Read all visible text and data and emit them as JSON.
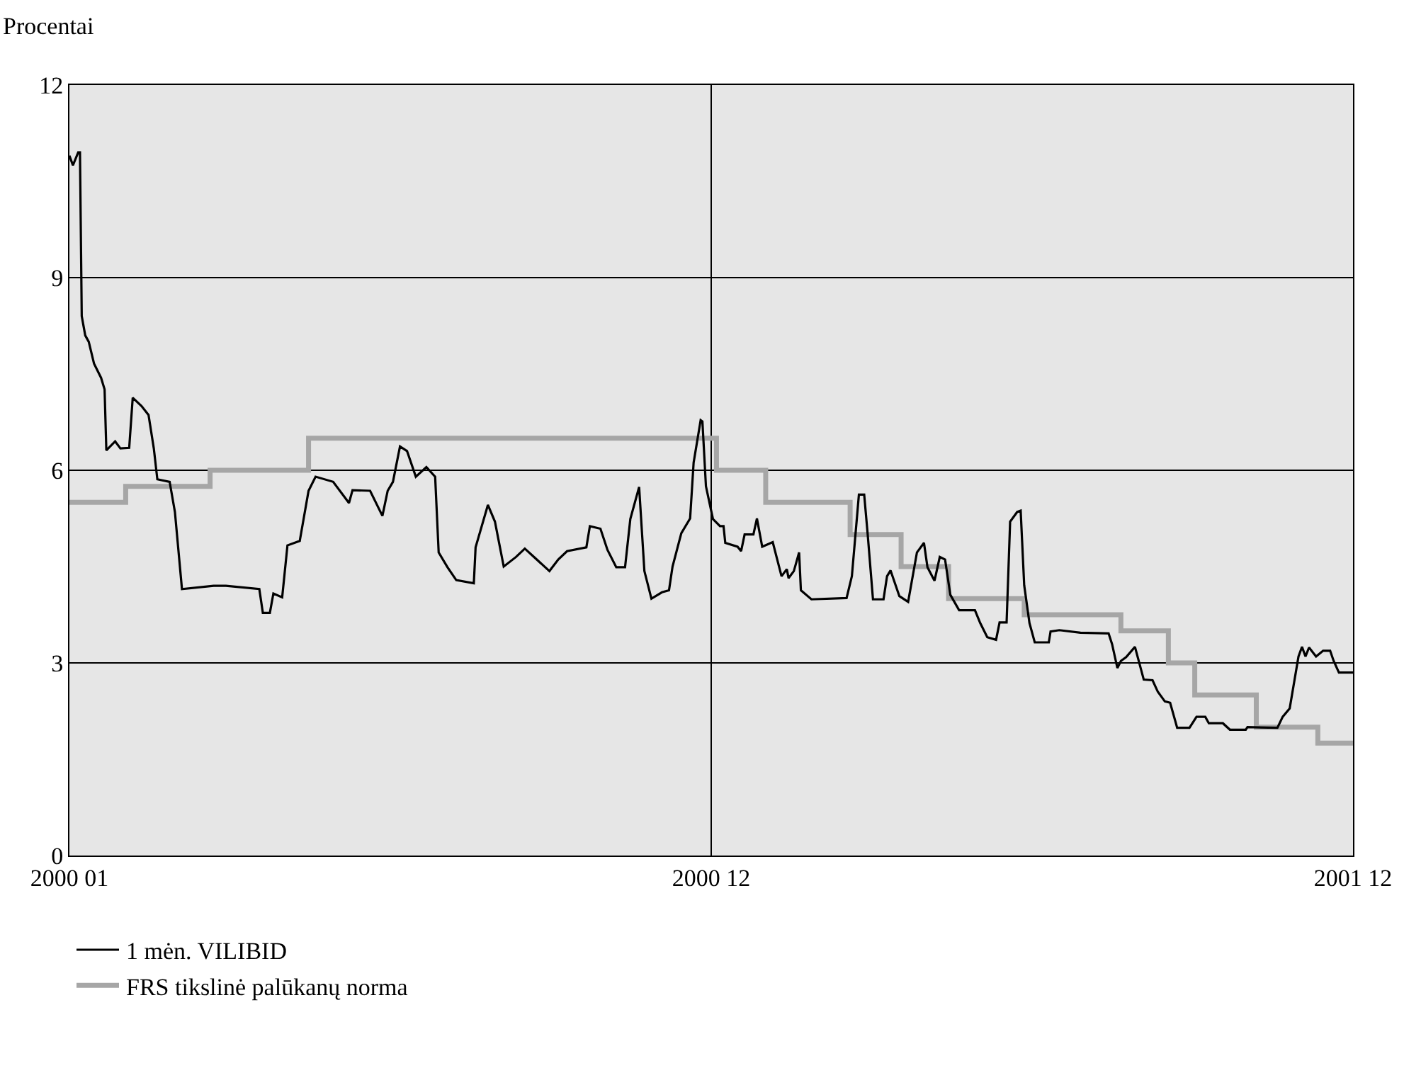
{
  "chart_data": {
    "type": "line",
    "ylabel": "Procentai",
    "xlim": [
      "2000-01-01",
      "2001-12-31"
    ],
    "xticks": [
      {
        "value": "2000-01-01",
        "label": "2000 01"
      },
      {
        "value": "2000-12-31",
        "label": "2000 12"
      },
      {
        "value": "2001-12-31",
        "label": "2001 12"
      }
    ],
    "ylim": [
      0,
      12
    ],
    "yticks": [
      0,
      3,
      6,
      9,
      12
    ],
    "grid": true,
    "legend": "bottom",
    "line_style": "solid",
    "marker": "none",
    "series": [
      {
        "name": "1 mėn. VILIBID",
        "color": "#000000",
        "x": [
          "2000-01-01",
          "2000-01-03",
          "2000-01-06",
          "2000-01-07",
          "2000-01-08",
          "2000-01-10",
          "2000-01-12",
          "2000-01-15",
          "2000-01-19",
          "2000-01-21",
          "2000-01-22",
          "2000-01-27",
          "2000-01-30",
          "2000-02-04",
          "2000-02-06",
          "2000-02-11",
          "2000-02-15",
          "2000-02-18",
          "2000-02-20",
          "2000-02-27",
          "2000-03-01",
          "2000-03-05",
          "2000-03-23",
          "2000-03-30",
          "2000-04-18",
          "2000-04-20",
          "2000-04-24",
          "2000-04-26",
          "2000-05-01",
          "2000-05-04",
          "2000-05-11",
          "2000-05-16",
          "2000-05-20",
          "2000-05-30",
          "2000-06-08",
          "2000-06-10",
          "2000-06-20",
          "2000-06-27",
          "2000-06-30",
          "2000-07-03",
          "2000-07-07",
          "2000-07-11",
          "2000-07-16",
          "2000-07-22",
          "2000-07-27",
          "2000-07-29",
          "2000-08-03",
          "2000-08-08",
          "2000-08-18",
          "2000-08-19",
          "2000-08-26",
          "2000-08-30",
          "2000-09-04",
          "2000-09-11",
          "2000-09-16",
          "2000-09-22",
          "2000-09-30",
          "2000-10-05",
          "2000-10-10",
          "2000-10-21",
          "2000-10-23",
          "2000-10-29",
          "2000-11-02",
          "2000-11-07",
          "2000-11-12",
          "2000-11-15",
          "2000-11-20",
          "2000-11-23",
          "2000-11-27",
          "2000-12-03",
          "2000-12-07",
          "2000-12-09",
          "2000-12-14",
          "2000-12-19",
          "2000-12-21",
          "2000-12-25",
          "2000-12-26",
          "2000-12-28",
          "2001-01-01",
          "2001-01-05",
          "2001-01-07",
          "2001-01-08",
          "2001-01-15",
          "2001-01-17",
          "2001-01-19",
          "2001-01-24",
          "2001-01-26",
          "2001-01-29",
          "2001-02-04",
          "2001-02-09",
          "2001-02-12",
          "2001-02-13",
          "2001-02-16",
          "2001-02-19",
          "2001-02-20",
          "2001-02-26",
          "2001-03-18",
          "2001-03-21",
          "2001-03-25",
          "2001-03-28",
          "2001-03-30",
          "2001-04-02",
          "2001-04-08",
          "2001-04-10",
          "2001-04-12",
          "2001-04-17",
          "2001-04-22",
          "2001-04-27",
          "2001-05-01",
          "2001-05-03",
          "2001-05-07",
          "2001-05-10",
          "2001-05-13",
          "2001-05-16",
          "2001-05-21",
          "2001-05-30",
          "2001-06-02",
          "2001-06-06",
          "2001-06-11",
          "2001-06-13",
          "2001-06-17",
          "2001-06-19",
          "2001-06-23",
          "2001-06-25",
          "2001-06-27",
          "2001-06-30",
          "2001-07-03",
          "2001-07-11",
          "2001-07-12",
          "2001-07-17",
          "2001-07-29",
          "2001-08-14",
          "2001-08-16",
          "2001-08-19",
          "2001-08-21",
          "2001-08-24",
          "2001-08-29",
          "2001-09-03",
          "2001-09-08",
          "2001-09-11",
          "2001-09-15",
          "2001-09-18",
          "2001-09-22",
          "2001-09-29",
          "2001-10-03",
          "2001-10-08",
          "2001-10-10",
          "2001-10-18",
          "2001-10-22",
          "2001-10-31",
          "2001-11-01",
          "2001-11-18",
          "2001-11-21",
          "2001-11-25",
          "2001-11-30",
          "2001-12-02",
          "2001-12-04",
          "2001-12-06",
          "2001-12-10",
          "2001-12-14",
          "2001-12-18",
          "2001-12-20",
          "2001-12-23",
          "2001-12-31"
        ],
        "values": [
          10.9,
          10.75,
          10.95,
          10.95,
          8.4,
          8.1,
          8.0,
          7.66,
          7.44,
          7.26,
          6.31,
          6.45,
          6.34,
          6.35,
          7.13,
          7.0,
          6.86,
          6.34,
          5.86,
          5.82,
          5.35,
          4.15,
          4.2,
          4.2,
          4.15,
          3.78,
          3.78,
          4.08,
          4.02,
          4.83,
          4.9,
          5.68,
          5.9,
          5.82,
          5.49,
          5.69,
          5.68,
          5.29,
          5.68,
          5.82,
          6.37,
          6.3,
          5.9,
          6.05,
          5.9,
          4.72,
          4.49,
          4.29,
          4.24,
          4.8,
          5.46,
          5.2,
          4.5,
          4.65,
          4.78,
          4.63,
          4.43,
          4.61,
          4.74,
          4.8,
          5.13,
          5.09,
          4.76,
          4.49,
          4.49,
          5.24,
          5.74,
          4.43,
          4.0,
          4.1,
          4.13,
          4.5,
          5.02,
          5.25,
          6.12,
          6.78,
          6.76,
          5.75,
          5.24,
          5.13,
          5.13,
          4.87,
          4.81,
          4.74,
          5.0,
          5.0,
          5.25,
          4.81,
          4.88,
          4.35,
          4.46,
          4.32,
          4.43,
          4.72,
          4.13,
          3.99,
          4.01,
          4.35,
          5.62,
          5.62,
          5.0,
          3.99,
          3.99,
          4.35,
          4.44,
          4.04,
          3.95,
          4.72,
          4.87,
          4.49,
          4.28,
          4.65,
          4.61,
          4.06,
          3.82,
          3.82,
          3.62,
          3.4,
          3.36,
          3.63,
          3.63,
          5.2,
          5.35,
          5.37,
          4.21,
          3.62,
          3.32,
          3.32,
          3.49,
          3.51,
          3.47,
          3.46,
          3.29,
          2.92,
          3.03,
          3.09,
          3.25,
          2.74,
          2.73,
          2.55,
          2.4,
          2.38,
          1.99,
          1.99,
          2.16,
          2.16,
          2.06,
          2.06,
          1.96,
          1.96,
          2.0,
          1.99,
          2.16,
          2.29,
          3.1,
          3.25,
          3.1,
          3.24,
          3.1,
          3.19,
          3.19,
          3.03,
          2.85,
          2.85
        ]
      },
      {
        "name": "FRS tikslinė palūkanų norma",
        "type": "step",
        "color": "#a6a6a6",
        "x": [
          "2000-01-01",
          "2000-02-02",
          "2000-03-21",
          "2000-05-16",
          "2001-01-03",
          "2001-01-31",
          "2001-03-20",
          "2001-04-18",
          "2001-05-15",
          "2001-06-27",
          "2001-08-21",
          "2001-09-17",
          "2001-10-02",
          "2001-11-06",
          "2001-12-11",
          "2001-12-31"
        ],
        "values": [
          5.5,
          5.75,
          6.0,
          6.5,
          6.0,
          5.5,
          5.0,
          4.5,
          4.0,
          3.75,
          3.5,
          3.0,
          2.5,
          2.0,
          1.75,
          1.75
        ]
      }
    ]
  }
}
